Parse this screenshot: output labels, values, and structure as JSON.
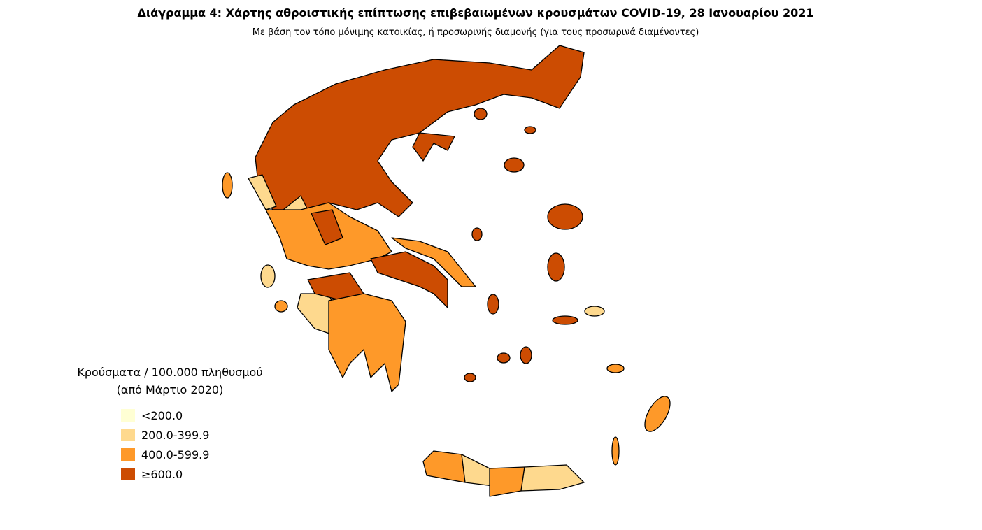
{
  "title": "Διάγραμμα 4: Χάρτης αθροιστικής επίπτωσης επιβεβαιωμένων κρουσμάτων COVID-19, 28 Ιανουαρίου 2021",
  "subtitle": "Με βάση τον τόπο μόνιμης κατοικίας, ή προσωρινής διαμονής (για τους προσωρινά διαμένοντες)",
  "legend": {
    "title": [
      "Κρούσματα / 100.000 πληθυσμού",
      "(από Μάρτιο 2020)"
    ],
    "items": [
      {
        "label": "<200.0",
        "color": "#ffffd4"
      },
      {
        "label": "200.0-399.9",
        "color": "#fed98e"
      },
      {
        "label": "400.0-599.9",
        "color": "#fe9929"
      },
      {
        "label": "≥600.0",
        "color": "#cc4c02"
      }
    ]
  }
}
